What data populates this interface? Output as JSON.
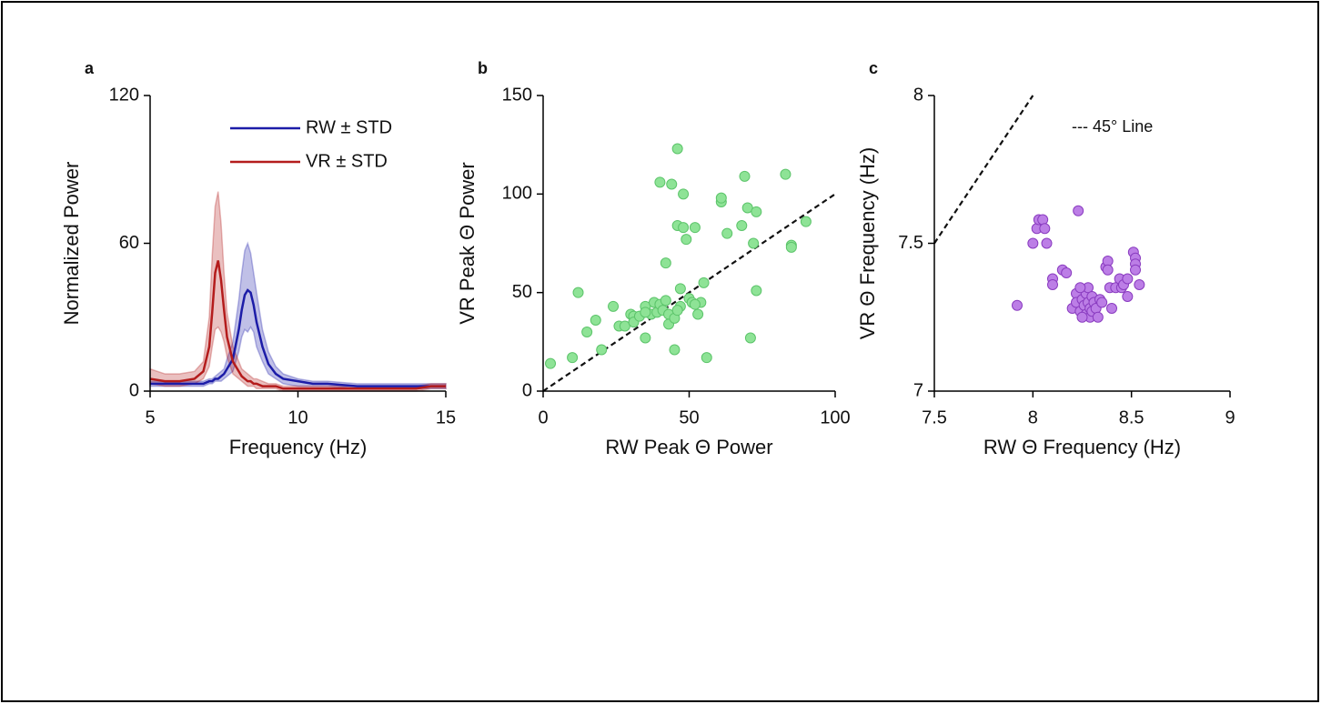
{
  "chart_data": [
    {
      "type": "line",
      "panel_label": "a",
      "xlabel": "Frequency  (Hz)",
      "ylabel": "Normalized Power",
      "xlim": [
        5,
        15
      ],
      "xticks": [
        5,
        10,
        15
      ],
      "ylim": [
        0,
        120
      ],
      "yticks": [
        0,
        60,
        120
      ],
      "grid": false,
      "legend": "upper right",
      "x": [
        5,
        5.5,
        6,
        6.5,
        6.8,
        7,
        7.1,
        7.2,
        7.3,
        7.4,
        7.5,
        7.6,
        7.8,
        8,
        8.1,
        8.2,
        8.3,
        8.4,
        8.5,
        8.6,
        8.8,
        9,
        9.25,
        9.5,
        10,
        10.5,
        11,
        12,
        13,
        14,
        14.5,
        15
      ],
      "series": [
        {
          "name": "RW ± STD",
          "color": "#1c1ca8",
          "values": [
            3,
            3,
            3,
            3,
            3,
            4,
            4,
            5,
            5,
            6,
            7,
            9,
            13,
            25,
            33,
            39,
            41,
            40,
            35,
            28,
            18,
            11,
            7,
            5,
            4,
            3,
            3,
            2,
            2,
            2,
            2,
            2
          ],
          "upper": [
            4,
            4,
            4,
            4,
            4,
            5,
            5,
            6,
            7,
            8,
            9,
            13,
            20,
            37,
            48,
            57,
            60,
            56,
            48,
            40,
            25,
            16,
            10,
            7,
            5,
            4,
            4,
            3,
            3,
            3,
            3,
            3
          ],
          "lower": [
            2,
            2,
            2,
            2,
            2,
            3,
            3,
            4,
            4,
            4,
            5,
            6,
            8,
            16,
            22,
            25,
            24,
            26,
            24,
            18,
            12,
            7,
            5,
            3,
            2,
            2,
            2,
            1,
            1,
            1,
            1,
            1
          ]
        },
        {
          "name": "VR ± STD",
          "color": "#b41c1c",
          "values": [
            5,
            4,
            4,
            5,
            8,
            18,
            32,
            48,
            53,
            45,
            33,
            22,
            12,
            8,
            6,
            5,
            4,
            4,
            3,
            3,
            2,
            2,
            2,
            1,
            1,
            1,
            1,
            1,
            1,
            1,
            2,
            2
          ],
          "upper": [
            9,
            7,
            7,
            8,
            12,
            30,
            55,
            75,
            81,
            68,
            48,
            32,
            18,
            12,
            9,
            8,
            7,
            6,
            5,
            5,
            4,
            3,
            3,
            2,
            2,
            2,
            2,
            2,
            2,
            2,
            3,
            3
          ],
          "lower": [
            3,
            2,
            2,
            3,
            5,
            10,
            18,
            25,
            26,
            24,
            20,
            14,
            7,
            5,
            4,
            3,
            2,
            2,
            2,
            1,
            1,
            1,
            1,
            0,
            0,
            0,
            0,
            0,
            0,
            0,
            1,
            1
          ]
        }
      ]
    },
    {
      "type": "scatter",
      "panel_label": "b",
      "xlabel": "RW Peak Θ Power",
      "ylabel": "VR Peak  Θ Power",
      "xlim": [
        0,
        100
      ],
      "xticks": [
        0,
        50,
        100
      ],
      "ylim": [
        0,
        150
      ],
      "yticks": [
        0,
        50,
        100,
        150
      ],
      "grid": false,
      "color": "#8ee396",
      "edgecolor": "#5cc46a",
      "reference_line": {
        "x": [
          0,
          100
        ],
        "y": [
          0,
          100
        ]
      },
      "x": [
        2.5,
        10,
        12,
        15,
        18,
        20,
        24,
        26,
        28,
        30,
        31,
        31,
        33,
        35,
        35,
        37,
        38,
        39,
        40,
        40,
        41,
        42,
        42,
        43,
        43,
        44,
        45,
        45,
        46,
        46,
        47,
        47,
        48,
        49,
        48,
        50,
        51,
        53,
        52,
        54,
        55,
        56,
        61,
        61,
        63,
        68,
        69,
        70,
        71,
        72,
        73,
        73,
        83,
        85,
        85,
        90,
        46,
        52,
        35
      ],
      "values": [
        14,
        17,
        50,
        30,
        36,
        21,
        43,
        33,
        33,
        39,
        38,
        35,
        38,
        27,
        43,
        39,
        45,
        40,
        44,
        106,
        41,
        65,
        46,
        34,
        39,
        105,
        21,
        37,
        123,
        84,
        52,
        43,
        100,
        77,
        83,
        47,
        45,
        39,
        83,
        45,
        55,
        17,
        96,
        98,
        80,
        84,
        109,
        93,
        27,
        75,
        91,
        51,
        110,
        74,
        73,
        86,
        41,
        44,
        40
      ]
    },
    {
      "type": "scatter",
      "panel_label": "c",
      "xlabel": "RW Θ Frequency (Hz)",
      "ylabel": "VR Θ Frequency (Hz)",
      "xlim": [
        7.5,
        9
      ],
      "xticks": [
        7.5,
        8,
        8.5,
        9
      ],
      "ylim": [
        7,
        8
      ],
      "yticks": [
        7,
        7.5,
        8
      ],
      "grid": false,
      "color": "#bc7ee6",
      "edgecolor": "#8a3cc0",
      "reference_line": {
        "x": [
          7.5,
          8
        ],
        "y": [
          7.5,
          8
        ],
        "label": "--- 45° Line"
      },
      "x": [
        7.92,
        8.0,
        8.02,
        8.03,
        8.05,
        8.06,
        8.07,
        8.1,
        8.1,
        8.15,
        8.17,
        8.23,
        8.2,
        8.22,
        8.22,
        8.24,
        8.25,
        8.26,
        8.27,
        8.27,
        8.28,
        8.28,
        8.29,
        8.29,
        8.3,
        8.3,
        8.31,
        8.32,
        8.33,
        8.34,
        8.35,
        8.37,
        8.38,
        8.38,
        8.39,
        8.4,
        8.42,
        8.44,
        8.45,
        8.46,
        8.48,
        8.48,
        8.51,
        8.52,
        8.52,
        8.52,
        8.54,
        8.25,
        8.24
      ],
      "values": [
        7.29,
        7.5,
        7.55,
        7.58,
        7.58,
        7.55,
        7.5,
        7.38,
        7.36,
        7.41,
        7.4,
        7.61,
        7.28,
        7.33,
        7.3,
        7.27,
        7.31,
        7.29,
        7.33,
        7.26,
        7.3,
        7.35,
        7.28,
        7.25,
        7.32,
        7.27,
        7.3,
        7.28,
        7.25,
        7.31,
        7.3,
        7.42,
        7.44,
        7.41,
        7.35,
        7.28,
        7.35,
        7.38,
        7.35,
        7.36,
        7.32,
        7.38,
        7.47,
        7.45,
        7.43,
        7.41,
        7.36,
        7.25,
        7.35
      ]
    }
  ]
}
